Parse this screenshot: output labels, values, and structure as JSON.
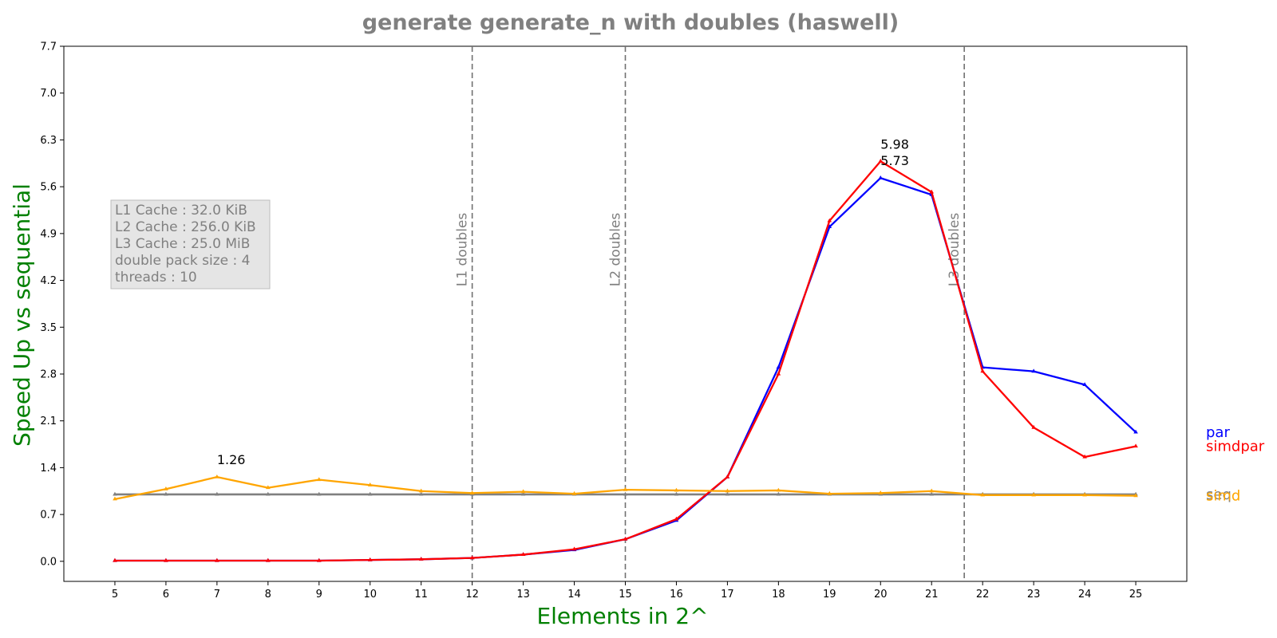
{
  "chart_data": {
    "type": "line",
    "title": "generate generate_n with doubles  (haswell)",
    "xlabel": "Elements in 2^",
    "ylabel": "Speed Up vs sequential",
    "x": [
      5,
      6,
      7,
      8,
      9,
      10,
      11,
      12,
      13,
      14,
      15,
      16,
      17,
      18,
      19,
      20,
      21,
      22,
      23,
      24,
      25
    ],
    "x_ticks": [
      "5",
      "6",
      "7",
      "8",
      "9",
      "10",
      "11",
      "12",
      "13",
      "14",
      "15",
      "16",
      "17",
      "18",
      "19",
      "20",
      "21",
      "22",
      "23",
      "24",
      "25"
    ],
    "xlim": [
      4,
      26
    ],
    "ylim": [
      -0.3,
      7.7
    ],
    "y_ticks": [
      "0.0",
      "0.7",
      "1.4",
      "2.1",
      "2.8",
      "3.5",
      "4.2",
      "4.9",
      "5.6",
      "6.3",
      "7.0",
      "7.7"
    ],
    "grid": false,
    "series": [
      {
        "name": "seq",
        "color": "#808080",
        "values": [
          1,
          1,
          1,
          1,
          1,
          1,
          1,
          1,
          1,
          1,
          1,
          1,
          1,
          1,
          1,
          1,
          1,
          1,
          1,
          1,
          1
        ]
      },
      {
        "name": "par",
        "color": "#0000ff",
        "values": [
          0.01,
          0.01,
          0.01,
          0.01,
          0.01,
          0.02,
          0.03,
          0.05,
          0.1,
          0.17,
          0.33,
          0.61,
          1.26,
          2.9,
          5.0,
          5.73,
          5.48,
          2.9,
          2.84,
          2.64,
          1.93
        ]
      },
      {
        "name": "simdpar",
        "color": "#ff0000",
        "values": [
          0.01,
          0.01,
          0.01,
          0.01,
          0.01,
          0.02,
          0.03,
          0.05,
          0.1,
          0.18,
          0.33,
          0.63,
          1.26,
          2.8,
          5.09,
          5.98,
          5.52,
          2.84,
          2.0,
          1.56,
          1.72
        ]
      },
      {
        "name": "simd",
        "color": "#ffa500",
        "values": [
          0.93,
          1.08,
          1.26,
          1.1,
          1.22,
          1.14,
          1.05,
          1.02,
          1.04,
          1.01,
          1.07,
          1.06,
          1.05,
          1.06,
          1.01,
          1.02,
          1.05,
          0.99,
          0.99,
          0.99,
          0.98
        ]
      }
    ],
    "vlines": [
      {
        "x": 12,
        "label": "L1 doubles"
      },
      {
        "x": 15,
        "label": "L2 doubles"
      },
      {
        "x": 21.64,
        "label": "L3 doubles"
      }
    ],
    "annotations": [
      {
        "x": 7,
        "y": 1.26,
        "text": "1.26"
      },
      {
        "x": 20,
        "y": 5.98,
        "text": "5.98"
      },
      {
        "x": 20,
        "y": 5.73,
        "text": "5.73"
      }
    ],
    "legend_placement": "right, beside each series end",
    "info_box": [
      "L1 Cache : 32.0 KiB",
      "L2 Cache : 256.0 KiB",
      "L3 Cache : 25.0 MiB",
      "double pack size : 4",
      "threads : 10"
    ]
  }
}
